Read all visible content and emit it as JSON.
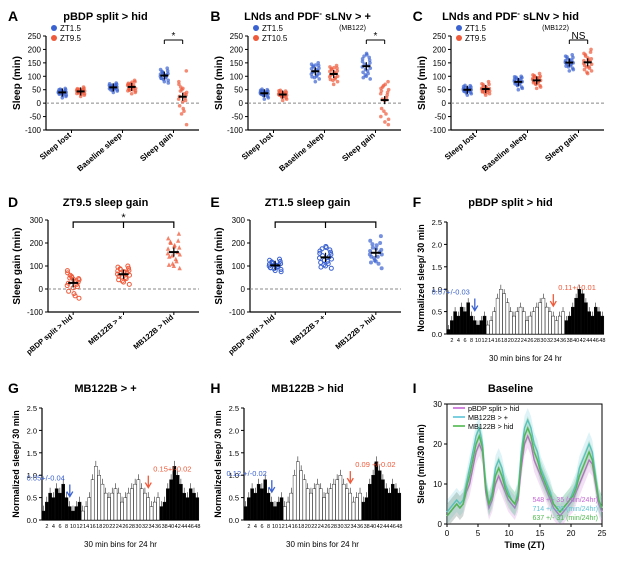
{
  "panels": {
    "A": {
      "title": "pBDP split > hid",
      "ylabel": "Sleep (min)",
      "ylim": [
        -100,
        250
      ],
      "ytick_step": 50,
      "categories": [
        "Sleep lost",
        "Baseline sleep",
        "Sleep gain"
      ],
      "sig": "*",
      "series": [
        {
          "label": "ZT1.5",
          "color": "#3b62d1",
          "jitter": [
            [
              20,
              35,
              45,
              50,
              40,
              30,
              25,
              55,
              42,
              38,
              48,
              52,
              33,
              44,
              39,
              41,
              50,
              36,
              47,
              29
            ],
            [
              40,
              55,
              65,
              70,
              50,
              45,
              60,
              75,
              68,
              52,
              48,
              63,
              58,
              72,
              66,
              54,
              61,
              49,
              67,
              56
            ],
            [
              80,
              95,
              105,
              120,
              85,
              75,
              110,
              130,
              98,
              102,
              88,
              115,
              92,
              125,
              100,
              108,
              93,
              118,
              112,
              104
            ]
          ]
        },
        {
          "label": "ZT9.5",
          "color": "#ef5a3a",
          "jitter": [
            [
              25,
              40,
              50,
              55,
              35,
              45,
              30,
              60,
              48,
              42,
              52,
              38,
              44,
              50,
              46,
              36,
              54,
              41,
              49,
              33
            ],
            [
              35,
              50,
              60,
              80,
              45,
              55,
              40,
              85,
              68,
              62,
              72,
              48,
              54,
              70,
              66,
              46,
              74,
              51,
              69,
              78
            ],
            [
              5,
              -30,
              20,
              30,
              -80,
              40,
              120,
              10,
              35,
              -20,
              50,
              60,
              -10,
              70,
              15,
              80,
              25,
              45,
              -40,
              55
            ]
          ]
        }
      ]
    },
    "B": {
      "title_pre": "LNds and PDF",
      "title_sup": "-",
      "title_post": " sLNv > +",
      "subtitle": "(MB122)",
      "ylabel": "Sleep (min)",
      "ylim": [
        -100,
        250
      ],
      "ytick_step": 50,
      "categories": [
        "Sleep lost",
        "Baseline sleep",
        "Sleep gain"
      ],
      "sig": "*",
      "series": [
        {
          "label": "ZT1.5",
          "color": "#3b62d1",
          "jitter": [
            [
              15,
              30,
              40,
              25,
              35,
              20,
              45,
              50,
              38,
              42,
              28,
              46,
              33,
              48,
              40,
              36,
              44,
              52,
              30,
              39
            ],
            [
              80,
              100,
              120,
              140,
              90,
              110,
              130,
              150,
              105,
              125,
              95,
              135,
              115,
              145,
              108,
              128,
              98,
              138,
              118,
              142
            ],
            [
              100,
              120,
              140,
              160,
              90,
              130,
              150,
              170,
              110,
              180,
              125,
              145,
              95,
              165,
              135,
              155,
              115,
              175,
              105,
              185
            ]
          ]
        },
        {
          "label": "ZT10.5",
          "color": "#ef5a3a",
          "jitter": [
            [
              10,
              25,
              35,
              20,
              30,
              15,
              40,
              45,
              28,
              38,
              22,
              42,
              30,
              46,
              34,
              32,
              40,
              48,
              26,
              36
            ],
            [
              70,
              90,
              110,
              130,
              80,
              100,
              120,
              140,
              95,
              115,
              85,
              125,
              105,
              135,
              98,
              118,
              88,
              128,
              108,
              132
            ],
            [
              10,
              -40,
              30,
              80,
              -60,
              50,
              -80,
              40,
              20,
              70,
              -30,
              60,
              -20,
              55,
              35,
              -50,
              45,
              15,
              65,
              -70
            ]
          ]
        }
      ]
    },
    "C": {
      "title_pre": "LNds and PDF",
      "title_sup": "-",
      "title_post": " sLNv > hid",
      "subtitle": "(MB122)",
      "ylabel": "Sleep (min)",
      "ylim": [
        -100,
        250
      ],
      "ytick_step": 50,
      "categories": [
        "Sleep lost",
        "Baseline sleep",
        "Sleep gain"
      ],
      "sig": "NS",
      "series": [
        {
          "label": "ZT1.5",
          "color": "#3b62d1",
          "jitter": [
            [
              30,
              45,
              55,
              40,
              50,
              35,
              60,
              65,
              48,
              52,
              42,
              58,
              46,
              62,
              50,
              54,
              44,
              66,
              38,
              56
            ],
            [
              50,
              70,
              90,
              60,
              80,
              55,
              95,
              100,
              75,
              85,
              65,
              92,
              78,
              98,
              82,
              88,
              72,
              96,
              68,
              86
            ],
            [
              120,
              140,
              160,
              130,
              150,
              125,
              170,
              180,
              145,
              155,
              135,
              165,
              148,
              175,
              152,
              158,
              138,
              172,
              142,
              162
            ]
          ]
        },
        {
          "label": "ZT9.5",
          "color": "#ef5a3a",
          "jitter": [
            [
              30,
              40,
              50,
              70,
              35,
              45,
              55,
              80,
              48,
              58,
              38,
              62,
              44,
              72,
              52,
              56,
              42,
              68,
              46,
              60
            ],
            [
              55,
              75,
              95,
              65,
              85,
              60,
              100,
              110,
              80,
              90,
              70,
              98,
              82,
              105,
              88,
              92,
              76,
              102,
              72,
              94
            ],
            [
              110,
              135,
              155,
              200,
              120,
              145,
              165,
              190,
              130,
              160,
              115,
              175,
              140,
              185,
              148,
              158,
              125,
              180,
              135,
              168
            ]
          ]
        }
      ]
    },
    "D": {
      "title": "ZT9.5 sleep gain",
      "ylabel": "Sleep gain (min)",
      "ylim": [
        -100,
        300
      ],
      "ytick_step": 100,
      "categories": [
        "pBDP split > hid",
        "MB122B > +",
        "MB122B > hid"
      ],
      "sig": "*",
      "color": "#ef5a3a",
      "series_single": [
        [
          5,
          -30,
          20,
          30,
          -40,
          40,
          45,
          10,
          35,
          -20,
          50,
          60,
          -10,
          70,
          15,
          80,
          25,
          48,
          55,
          42
        ],
        [
          30,
          50,
          70,
          90,
          20,
          60,
          80,
          100,
          45,
          75,
          35,
          85,
          55,
          95,
          65,
          78,
          40,
          88,
          52,
          72
        ],
        [
          100,
          130,
          160,
          240,
          90,
          150,
          180,
          210,
          120,
          190,
          110,
          200,
          140,
          220,
          155,
          175,
          105,
          205,
          145,
          185
        ]
      ]
    },
    "E": {
      "title": "ZT1.5 sleep gain",
      "ylabel": "Sleep gain (min)",
      "ylim": [
        -100,
        300
      ],
      "ytick_step": 100,
      "categories": [
        "pBDP split > hid",
        "MB122B > +",
        "MB122B > hid"
      ],
      "sig": "NS_bracket",
      "color": "#3b62d1",
      "series_single": [
        [
          80,
          95,
          105,
          120,
          85,
          75,
          110,
          130,
          98,
          102,
          88,
          115,
          92,
          125,
          100,
          108,
          93,
          118,
          112,
          104
        ],
        [
          100,
          120,
          140,
          160,
          90,
          130,
          150,
          170,
          110,
          180,
          125,
          145,
          95,
          165,
          135,
          155,
          115,
          175,
          105,
          185
        ],
        [
          120,
          140,
          160,
          230,
          90,
          150,
          170,
          200,
          110,
          190,
          125,
          180,
          140,
          210,
          150,
          165,
          115,
          195,
          135,
          175
        ]
      ]
    },
    "F": {
      "title": "pBDP split > hid",
      "ylabel": "Normalized sleep/ 30 min",
      "xlabel": "30 min bins for 24 hr",
      "ylim": [
        0,
        2.5
      ],
      "ytick_step": 0.5,
      "xlim": [
        1,
        48
      ],
      "dark_ranges": [
        [
          1,
          12
        ],
        [
          37,
          48
        ]
      ],
      "arrow_blue": {
        "bin": 9,
        "label": "0.07+/-0.03"
      },
      "arrow_red": {
        "bin": 33,
        "label": "0.11+/-0.01"
      },
      "bars": [
        0.1,
        0.3,
        0.5,
        0.4,
        0.6,
        0.5,
        0.7,
        0.4,
        0.3,
        0.2,
        0.3,
        0.4,
        0.2,
        0.3,
        0.5,
        0.8,
        1.0,
        0.9,
        0.7,
        0.5,
        0.4,
        0.5,
        0.6,
        0.5,
        0.3,
        0.4,
        0.5,
        0.6,
        0.7,
        0.8,
        0.6,
        0.5,
        0.4,
        0.3,
        0.4,
        0.5,
        0.3,
        0.4,
        0.6,
        0.8,
        1.0,
        0.9,
        0.7,
        0.5,
        0.4,
        0.6,
        0.5,
        0.4
      ],
      "err": 0.1
    },
    "G": {
      "title": "MB122B > +",
      "ylabel": "Normalized sleep/ 30 min",
      "xlabel": "30 min bins for 24 hr",
      "ylim": [
        0,
        2.5
      ],
      "ytick_step": 0.5,
      "xlim": [
        1,
        48
      ],
      "dark_ranges": [
        [
          1,
          12
        ],
        [
          37,
          48
        ]
      ],
      "arrow_blue": {
        "bin": 9,
        "label": "0.05+/-0.04"
      },
      "arrow_red": {
        "bin": 33,
        "label": "0.15+/-0.02"
      },
      "bars": [
        0.2,
        0.4,
        0.6,
        0.5,
        0.7,
        0.6,
        0.8,
        0.5,
        0.3,
        0.2,
        0.3,
        0.4,
        0.2,
        0.3,
        0.5,
        0.9,
        1.2,
        1.0,
        0.8,
        0.6,
        0.5,
        0.6,
        0.7,
        0.6,
        0.4,
        0.5,
        0.6,
        0.7,
        0.8,
        0.9,
        0.7,
        0.6,
        0.5,
        0.3,
        0.4,
        0.5,
        0.3,
        0.4,
        0.7,
        0.9,
        1.2,
        1.0,
        0.8,
        0.6,
        0.5,
        0.7,
        0.6,
        0.5
      ],
      "err": 0.12
    },
    "H": {
      "title": "MB122B > hid",
      "ylabel": "Normalized sleep/ 30 min",
      "xlabel": "30 min bins for 24 hr",
      "ylim": [
        0,
        2.5
      ],
      "ytick_step": 0.5,
      "xlim": [
        1,
        48
      ],
      "dark_ranges": [
        [
          1,
          12
        ],
        [
          37,
          48
        ]
      ],
      "arrow_blue": {
        "bin": 9,
        "label": "0.12 +/-0.02"
      },
      "arrow_red": {
        "bin": 33,
        "label": "0.09 +/-0.02"
      },
      "bars": [
        0.3,
        0.5,
        0.7,
        0.6,
        0.8,
        0.7,
        0.9,
        0.6,
        0.4,
        0.3,
        0.4,
        0.5,
        0.3,
        0.4,
        0.6,
        1.0,
        1.3,
        1.1,
        0.9,
        0.7,
        0.6,
        0.7,
        0.8,
        0.7,
        0.5,
        0.6,
        0.7,
        0.8,
        0.9,
        1.0,
        0.8,
        0.7,
        0.6,
        0.4,
        0.5,
        0.6,
        0.4,
        0.5,
        0.8,
        1.0,
        1.3,
        1.1,
        0.9,
        0.7,
        0.6,
        0.8,
        0.7,
        0.6
      ],
      "err": 0.12
    },
    "I": {
      "title": "Baseline",
      "ylabel": "Sleep (min/30 min)",
      "xlabel": "Time (ZT)",
      "ylim": [
        0,
        30
      ],
      "ytick_step": 10,
      "xlim": [
        0,
        25
      ],
      "xtick_step": 5,
      "lines": [
        {
          "label": "pBDP split > hid",
          "color": "#c566d6",
          "stat": "548 +/- 35 (min/24hr)",
          "y": [
            2,
            3,
            4,
            5,
            4,
            5,
            8,
            10,
            14,
            18,
            20,
            18,
            8,
            4,
            6,
            10,
            12,
            10,
            8,
            6,
            5,
            4,
            6,
            14,
            20,
            22,
            20,
            16,
            14,
            12,
            10,
            8,
            6,
            4,
            3,
            2,
            3,
            4,
            5,
            6,
            8,
            10,
            12,
            14,
            16,
            15,
            10,
            5,
            3
          ]
        },
        {
          "label": "MB122B > +",
          "color": "#5cc3d6",
          "stat": "714 +/- 20 (min/24hr)",
          "y": [
            3,
            4,
            5,
            6,
            5,
            6,
            10,
            14,
            18,
            22,
            24,
            20,
            10,
            5,
            8,
            14,
            16,
            14,
            10,
            8,
            6,
            5,
            8,
            18,
            24,
            26,
            24,
            20,
            18,
            14,
            12,
            10,
            8,
            5,
            4,
            3,
            4,
            5,
            6,
            8,
            10,
            14,
            16,
            18,
            20,
            18,
            12,
            6,
            4
          ]
        },
        {
          "label": "MB122B > hid",
          "color": "#4fb84f",
          "stat": "637 +/- 31 (min/24hr)",
          "y": [
            2,
            3,
            4,
            5,
            4,
            5,
            9,
            12,
            16,
            20,
            22,
            19,
            9,
            5,
            7,
            12,
            14,
            12,
            9,
            7,
            6,
            5,
            7,
            16,
            22,
            24,
            22,
            18,
            16,
            13,
            11,
            9,
            7,
            5,
            4,
            3,
            4,
            5,
            6,
            7,
            9,
            12,
            14,
            16,
            18,
            16,
            11,
            6,
            4
          ]
        }
      ]
    }
  },
  "colors": {
    "axis": "#000000",
    "dashed": "#888888",
    "bar_light": "#ffffff",
    "bar_dark": "#000000",
    "bar_border": "#000000"
  }
}
